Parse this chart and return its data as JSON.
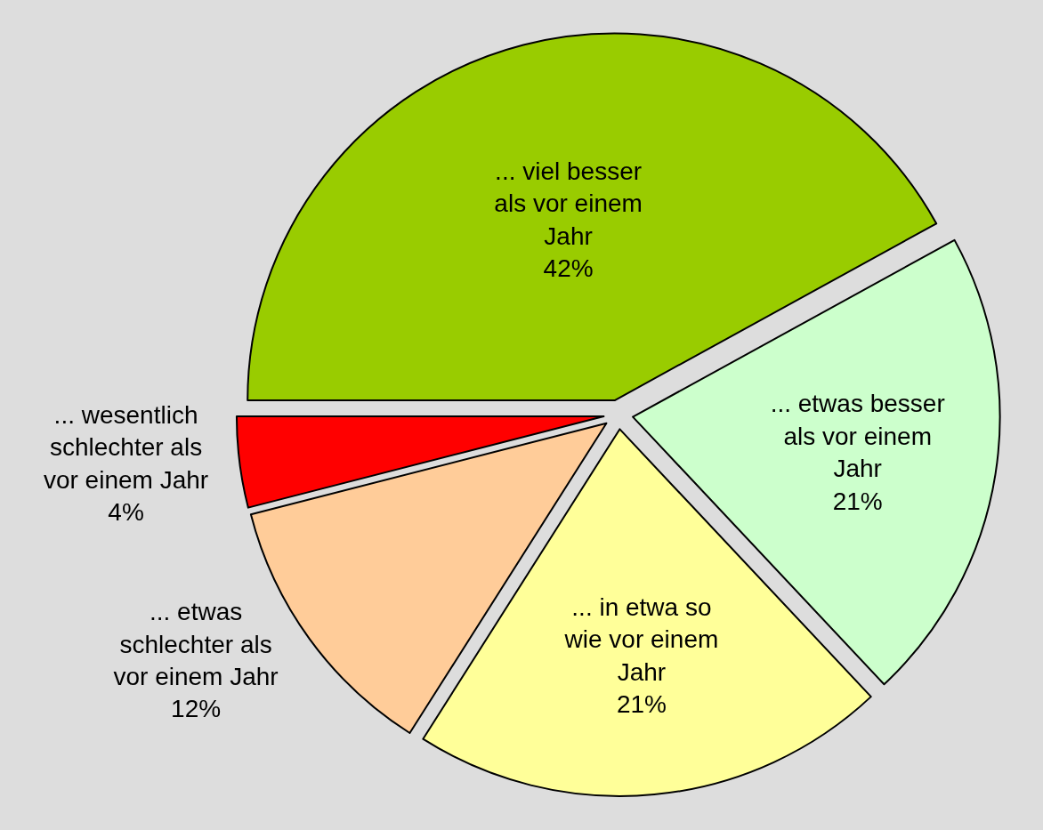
{
  "chart_data": {
    "type": "pie",
    "categories": [
      "... viel besser als vor einem Jahr",
      "... etwas besser als vor einem Jahr",
      "... in etwa so wie vor einem Jahr",
      "... etwas schlechter als vor einem Jahr",
      "... wesentlich schlechter als vor einem Jahr"
    ],
    "values": [
      42,
      21,
      21,
      12,
      4
    ],
    "value_labels": [
      "42%",
      "21%",
      "21%",
      "12%",
      "4%"
    ],
    "colors": [
      "#99cc00",
      "#ccffcc",
      "#ffff99",
      "#ffcc99",
      "#ff0000"
    ],
    "legend": false
  }
}
